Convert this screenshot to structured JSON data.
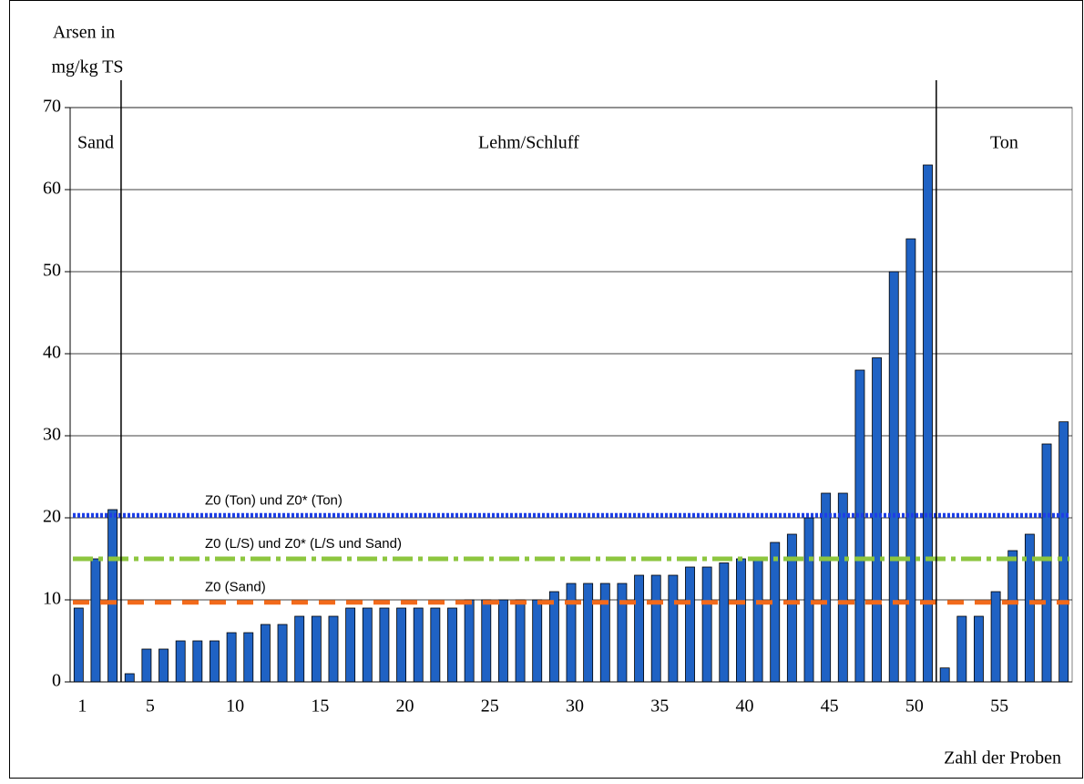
{
  "chart_data": {
    "type": "bar",
    "ylabel": [
      "Arsen in",
      "mg/kg TS"
    ],
    "xlabel": "Zahl der Proben",
    "categories": [
      1,
      null,
      null,
      null,
      5,
      null,
      null,
      null,
      null,
      10,
      null,
      null,
      null,
      null,
      15,
      null,
      null,
      null,
      null,
      20,
      null,
      null,
      null,
      null,
      25,
      null,
      null,
      null,
      null,
      30,
      null,
      null,
      null,
      null,
      35,
      null,
      null,
      null,
      null,
      40,
      null,
      null,
      null,
      null,
      45,
      null,
      null,
      null,
      null,
      50,
      null,
      null,
      null,
      null,
      55,
      null,
      null,
      null,
      null
    ],
    "values": [
      9,
      15,
      21,
      1,
      4,
      4,
      5,
      5,
      5,
      6,
      6,
      7,
      7,
      8,
      8,
      8,
      9,
      9,
      9,
      9,
      9,
      9,
      9,
      10,
      10,
      10,
      10,
      10,
      11,
      12,
      12,
      12,
      12,
      13,
      13,
      13,
      14,
      14,
      14.5,
      15,
      15,
      17,
      18,
      20,
      23,
      23,
      38,
      39.5,
      50,
      54,
      63,
      1.7,
      8,
      8,
      11,
      16,
      18,
      29,
      31.7
    ],
    "color": "#1f62c4",
    "ylim": [
      0,
      70
    ],
    "yticks": [
      0,
      10,
      20,
      30,
      40,
      50,
      60,
      70
    ],
    "grid": true,
    "regions": [
      {
        "label": "Sand",
        "start": 1,
        "end": 3
      },
      {
        "label": "Lehm/Schluff",
        "start": 4,
        "end": 51
      },
      {
        "label": "Ton",
        "start": 52,
        "end": 59
      }
    ],
    "reference_lines": [
      {
        "label": "Z0 (Ton) und Z0* (Ton)",
        "value": 20.3,
        "color": "#1e3fe6",
        "style": "dotted"
      },
      {
        "label": "Z0 (L/S) und Z0* (L/S und Sand)",
        "value": 15,
        "color": "#8dc63f",
        "style": "dashdot"
      },
      {
        "label": "Z0 (Sand)",
        "value": 9.7,
        "color": "#f26a1b",
        "style": "dashed"
      }
    ]
  }
}
